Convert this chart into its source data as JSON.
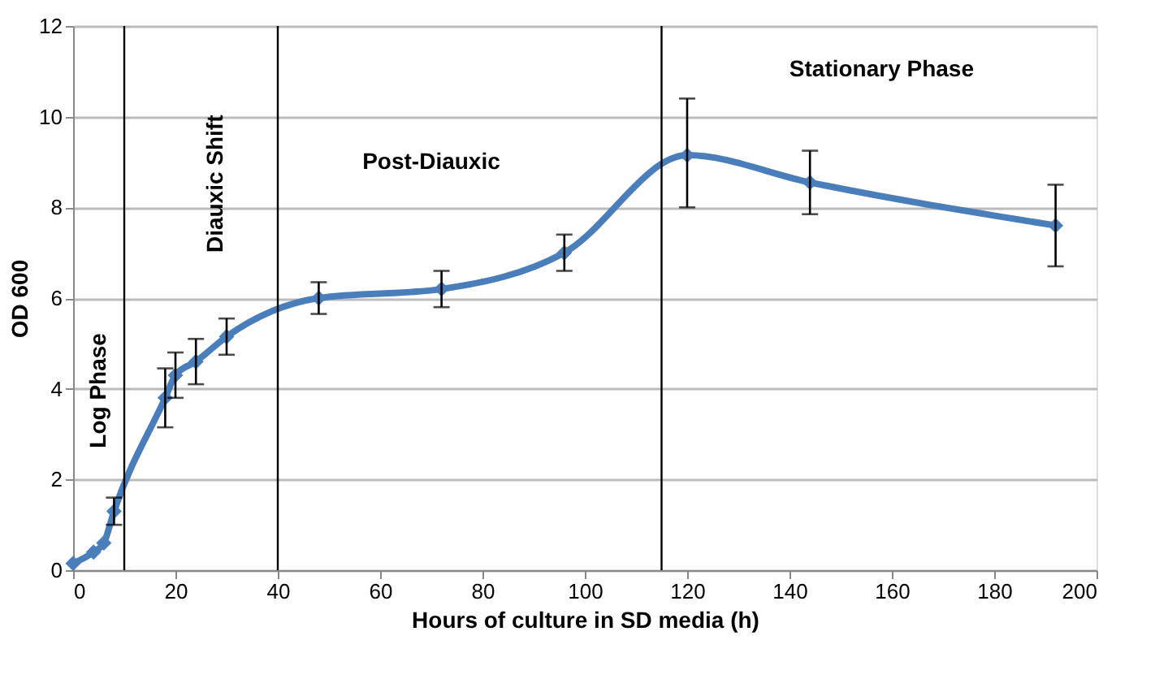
{
  "chart_data": {
    "type": "line",
    "xlabel": "Hours of culture in SD media (h)",
    "ylabel": "OD 600",
    "x": [
      0,
      4,
      6,
      8,
      18,
      20,
      24,
      30,
      48,
      72,
      96,
      120,
      144,
      192
    ],
    "series": [
      {
        "color": "#4a7ebb",
        "values": [
          0.15,
          0.4,
          0.6,
          1.3,
          3.8,
          4.3,
          4.6,
          5.15,
          6.0,
          6.2,
          7.0,
          9.15,
          8.55,
          7.6
        ],
        "errors": [
          null,
          null,
          null,
          0.3,
          0.65,
          0.5,
          0.5,
          0.4,
          0.35,
          0.4,
          0.4,
          [
            8.0,
            10.4
          ],
          0.7,
          [
            6.7,
            8.5
          ]
        ]
      }
    ],
    "xlim": [
      0,
      200
    ],
    "xticks": [
      0,
      20,
      40,
      60,
      80,
      100,
      120,
      140,
      160,
      180,
      200
    ],
    "ylim": [
      0,
      12
    ],
    "yticks": [
      0,
      2,
      4,
      6,
      8,
      10,
      12
    ],
    "grid": "y",
    "marker": "diamond",
    "line_style": "solid",
    "ref_lines": [
      {
        "axis": "x",
        "value": 10,
        "color": "#000000"
      },
      {
        "axis": "x",
        "value": 40,
        "color": "#000000"
      },
      {
        "axis": "x",
        "value": 115,
        "color": "#000000"
      }
    ],
    "annotations": [
      "Log Phase",
      "Diauxic Shift",
      "Post-Diauxic",
      "Stationary Phase"
    ]
  }
}
